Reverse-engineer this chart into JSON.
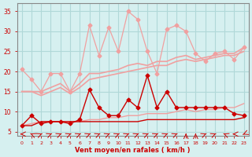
{
  "x": [
    0,
    1,
    2,
    3,
    4,
    5,
    6,
    7,
    8,
    9,
    10,
    11,
    12,
    13,
    14,
    15,
    16,
    17,
    18,
    19,
    20,
    21,
    22,
    23
  ],
  "line_light_pink_top": [
    20.5,
    18.0,
    15.0,
    19.5,
    19.5,
    15.0,
    19.5,
    31.5,
    24.0,
    31.0,
    25.0,
    35.0,
    33.0,
    25.0,
    19.5,
    30.5,
    31.5,
    30.0,
    24.5,
    22.5,
    24.5,
    25.0,
    23.0,
    26.0
  ],
  "line_light_pink_upper_band": [
    15.0,
    15.0,
    15.0,
    16.0,
    17.0,
    15.0,
    17.0,
    19.5,
    19.5,
    20.0,
    20.5,
    21.5,
    22.0,
    21.5,
    22.5,
    22.5,
    23.5,
    24.0,
    23.0,
    23.5,
    24.0,
    24.5,
    24.5,
    26.0
  ],
  "line_light_pink_mid_band": [
    15.0,
    15.0,
    14.0,
    15.0,
    16.0,
    14.5,
    16.0,
    18.0,
    18.5,
    19.0,
    19.5,
    20.0,
    20.5,
    21.0,
    21.5,
    21.5,
    22.5,
    23.0,
    22.5,
    23.0,
    23.5,
    24.0,
    24.0,
    25.0
  ],
  "line_light_lower_band": [
    6.5,
    7.0,
    7.5,
    7.5,
    7.5,
    7.5,
    7.5,
    8.0,
    8.0,
    8.5,
    8.5,
    9.0,
    9.0,
    9.5,
    9.5,
    9.5,
    10.0,
    10.5,
    10.0,
    10.5,
    10.5,
    11.0,
    11.0,
    12.0
  ],
  "line_red_spiky": [
    6.5,
    9.0,
    7.0,
    7.5,
    7.5,
    7.0,
    8.0,
    15.5,
    11.0,
    9.0,
    9.0,
    13.0,
    11.0,
    19.0,
    11.0,
    15.0,
    11.0,
    11.0,
    11.0,
    11.0,
    11.0,
    11.0,
    9.5,
    9.0
  ],
  "line_red_flat": [
    6.5,
    6.5,
    7.5,
    7.5,
    7.5,
    7.5,
    7.5,
    7.5,
    7.5,
    7.5,
    7.5,
    7.5,
    7.5,
    8.0,
    8.0,
    8.0,
    8.0,
    8.0,
    8.0,
    8.0,
    8.0,
    8.0,
    8.0,
    8.5
  ],
  "wind_arrows": [
    270,
    315,
    45,
    45,
    45,
    45,
    45,
    45,
    45,
    45,
    45,
    45,
    45,
    45,
    45,
    45,
    45,
    0,
    0,
    45,
    45,
    315,
    270,
    225
  ],
  "ylim": [
    4,
    37
  ],
  "yticks": [
    5,
    10,
    15,
    20,
    25,
    30,
    35
  ],
  "xlim": [
    -0.5,
    23.5
  ],
  "xticks": [
    0,
    1,
    2,
    3,
    4,
    5,
    6,
    7,
    8,
    9,
    10,
    11,
    12,
    13,
    14,
    15,
    16,
    17,
    18,
    19,
    20,
    21,
    22,
    23
  ],
  "xlabel": "Vent moyen/en rafales ( km/h )",
  "bg_color": "#d6f0f0",
  "grid_color": "#b0d8d8",
  "light_pink": "#f0a0a0",
  "dark_red": "#cc0000",
  "arrow_color": "#cc0000",
  "xlabel_color": "#cc0000",
  "tick_color": "#cc0000",
  "axis_color": "#888888"
}
